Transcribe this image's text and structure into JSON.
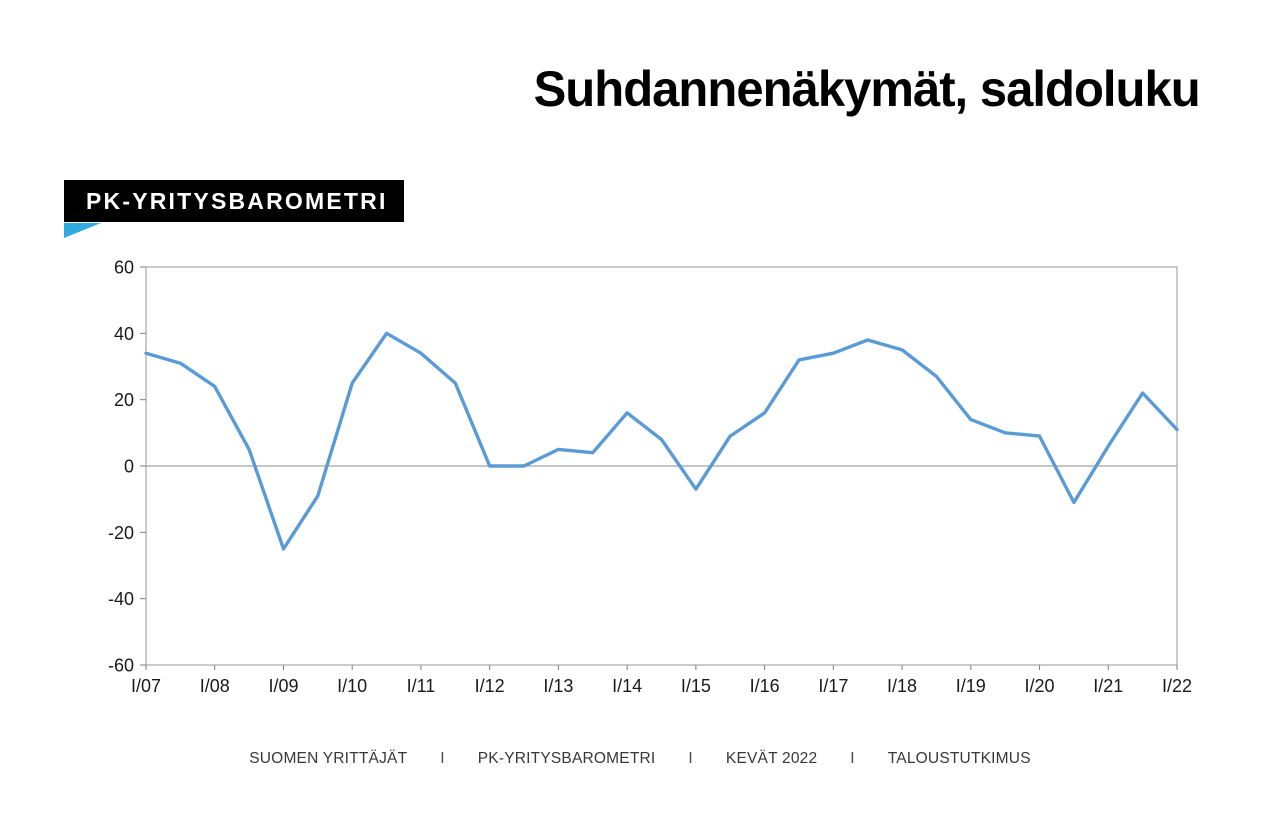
{
  "header": {
    "title": "Suhdannenäkymät, saldoluku"
  },
  "badge": {
    "label": "PK-YRITYSBAROMETRI",
    "background_color": "#000000",
    "text_color": "#FFFFFF",
    "triangle_color": "#2FABE1"
  },
  "footer": {
    "separator": "I",
    "items": [
      "SUOMEN YRITTÄJÄT",
      "PK-YRITYSBAROMETRI",
      "KEVÄT 2022",
      "TALOUSTUTKIMUS"
    ]
  },
  "chart_data": {
    "type": "line",
    "title": "Suhdannenäkymät, saldoluku",
    "periods": [
      "I/07",
      "II/07",
      "I/08",
      "II/08",
      "I/09",
      "II/09",
      "I/10",
      "II/10",
      "I/11",
      "II/11",
      "I/12",
      "II/12",
      "I/13",
      "II/13",
      "I/14",
      "II/14",
      "I/15",
      "II/15",
      "I/16",
      "II/16",
      "I/17",
      "II/17",
      "I/18",
      "II/18",
      "I/19",
      "II/19",
      "I/20",
      "II/20",
      "I/21",
      "II/21",
      "I/22"
    ],
    "values": [
      34,
      31,
      24,
      5,
      -25,
      -9,
      25,
      40,
      34,
      25,
      0,
      0,
      5,
      4,
      16,
      8,
      -7,
      9,
      16,
      32,
      34,
      38,
      35,
      27,
      14,
      10,
      9,
      -11,
      6,
      22,
      11
    ],
    "x_tick_labels": [
      "I/07",
      "I/08",
      "I/09",
      "I/10",
      "I/11",
      "I/12",
      "I/13",
      "I/14",
      "I/15",
      "I/16",
      "I/17",
      "I/18",
      "I/19",
      "I/20",
      "I/21",
      "I/22"
    ],
    "y_ticks": [
      60,
      40,
      20,
      0,
      -20,
      -40,
      -60
    ],
    "ylim": [
      -60,
      60
    ],
    "xlabel": "",
    "ylabel": "",
    "legend": "none",
    "grid": "zero-line-only",
    "line_color": "#5B9BD5",
    "axis_color": "#ADADAD",
    "zero_line_color": "#A3A3A3",
    "tick_color": "#7F7F7F",
    "tick_label_color": "#1A1A1A"
  }
}
